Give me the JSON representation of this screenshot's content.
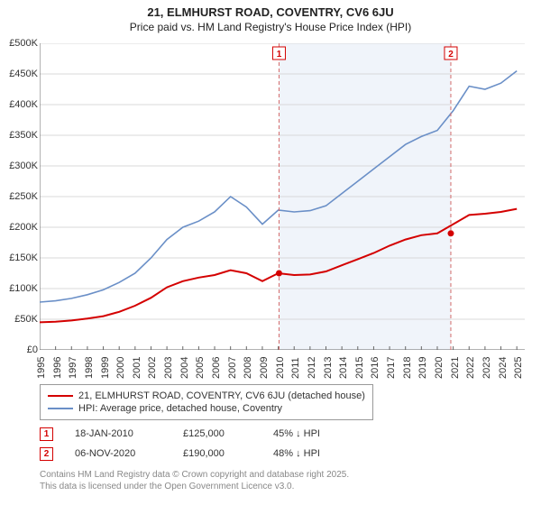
{
  "title_line1": "21, ELMHURST ROAD, COVENTRY, CV6 6JU",
  "title_line2": "Price paid vs. HM Land Registry's House Price Index (HPI)",
  "chart": {
    "type": "line",
    "background_color": "#ffffff",
    "shaded_region_color": "#f0f4fa",
    "shaded_region_xstart": 2010.05,
    "shaded_region_xend": 2020.85,
    "grid_color": "#d9d9d9",
    "axis_color": "#666666",
    "xlim": [
      1995,
      2025.5
    ],
    "ylim": [
      0,
      500000
    ],
    "ytick_step": 50000,
    "ytick_labels": [
      "£0",
      "£50K",
      "£100K",
      "£150K",
      "£200K",
      "£250K",
      "£300K",
      "£350K",
      "£400K",
      "£450K",
      "£500K"
    ],
    "xtick_step": 1,
    "xtick_labels": [
      "1995",
      "1996",
      "1997",
      "1998",
      "1999",
      "2000",
      "2001",
      "2002",
      "2003",
      "2004",
      "2005",
      "2006",
      "2007",
      "2008",
      "2009",
      "2010",
      "2011",
      "2012",
      "2013",
      "2014",
      "2015",
      "2016",
      "2017",
      "2018",
      "2019",
      "2020",
      "2021",
      "2022",
      "2023",
      "2024",
      "2025"
    ],
    "label_fontsize": 11,
    "title_fontsize": 13,
    "series": [
      {
        "name": "property",
        "label": "21, ELMHURST ROAD, COVENTRY, CV6 6JU (detached house)",
        "color": "#d40000",
        "line_width": 2,
        "data": [
          [
            1995,
            45000
          ],
          [
            1996,
            46000
          ],
          [
            1997,
            48000
          ],
          [
            1998,
            51000
          ],
          [
            1999,
            55000
          ],
          [
            2000,
            62000
          ],
          [
            2001,
            72000
          ],
          [
            2002,
            85000
          ],
          [
            2003,
            102000
          ],
          [
            2004,
            112000
          ],
          [
            2005,
            118000
          ],
          [
            2006,
            122000
          ],
          [
            2007,
            130000
          ],
          [
            2008,
            125000
          ],
          [
            2009,
            112000
          ],
          [
            2010,
            125000
          ],
          [
            2011,
            122000
          ],
          [
            2012,
            123000
          ],
          [
            2013,
            128000
          ],
          [
            2014,
            138000
          ],
          [
            2015,
            148000
          ],
          [
            2016,
            158000
          ],
          [
            2017,
            170000
          ],
          [
            2018,
            180000
          ],
          [
            2019,
            187000
          ],
          [
            2020,
            190000
          ],
          [
            2021,
            205000
          ],
          [
            2022,
            220000
          ],
          [
            2023,
            222000
          ],
          [
            2024,
            225000
          ],
          [
            2025,
            230000
          ]
        ]
      },
      {
        "name": "hpi",
        "label": "HPI: Average price, detached house, Coventry",
        "color": "#6a8fc7",
        "line_width": 1.6,
        "data": [
          [
            1995,
            78000
          ],
          [
            1996,
            80000
          ],
          [
            1997,
            84000
          ],
          [
            1998,
            90000
          ],
          [
            1999,
            98000
          ],
          [
            2000,
            110000
          ],
          [
            2001,
            125000
          ],
          [
            2002,
            150000
          ],
          [
            2003,
            180000
          ],
          [
            2004,
            200000
          ],
          [
            2005,
            210000
          ],
          [
            2006,
            225000
          ],
          [
            2007,
            250000
          ],
          [
            2008,
            233000
          ],
          [
            2009,
            205000
          ],
          [
            2010,
            228000
          ],
          [
            2011,
            225000
          ],
          [
            2012,
            227000
          ],
          [
            2013,
            235000
          ],
          [
            2014,
            255000
          ],
          [
            2015,
            275000
          ],
          [
            2016,
            295000
          ],
          [
            2017,
            315000
          ],
          [
            2018,
            335000
          ],
          [
            2019,
            348000
          ],
          [
            2020,
            358000
          ],
          [
            2021,
            390000
          ],
          [
            2022,
            430000
          ],
          [
            2023,
            425000
          ],
          [
            2024,
            435000
          ],
          [
            2025,
            455000
          ]
        ]
      }
    ],
    "sale_markers": [
      {
        "n": "1",
        "x": 2010.05,
        "y_ref_line": true,
        "point_y": 125000,
        "color": "#d40000"
      },
      {
        "n": "2",
        "x": 2020.85,
        "y_ref_line": true,
        "point_y": 190000,
        "color": "#d40000"
      }
    ],
    "marker_box_border": "#d40000",
    "marker_box_text_color": "#d40000",
    "ref_line_color": "#d46a6a",
    "ref_line_dash": "4 3"
  },
  "legend": {
    "items": [
      {
        "color": "#d40000",
        "label": "21, ELMHURST ROAD, COVENTRY, CV6 6JU (detached house)"
      },
      {
        "color": "#6a8fc7",
        "label": "HPI: Average price, detached house, Coventry"
      }
    ]
  },
  "sales": [
    {
      "n": "1",
      "date": "18-JAN-2010",
      "price": "£125,000",
      "delta": "45% ↓ HPI"
    },
    {
      "n": "2",
      "date": "06-NOV-2020",
      "price": "£190,000",
      "delta": "48% ↓ HPI"
    }
  ],
  "footer_line1": "Contains HM Land Registry data © Crown copyright and database right 2025.",
  "footer_line2": "This data is licensed under the Open Government Licence v3.0."
}
